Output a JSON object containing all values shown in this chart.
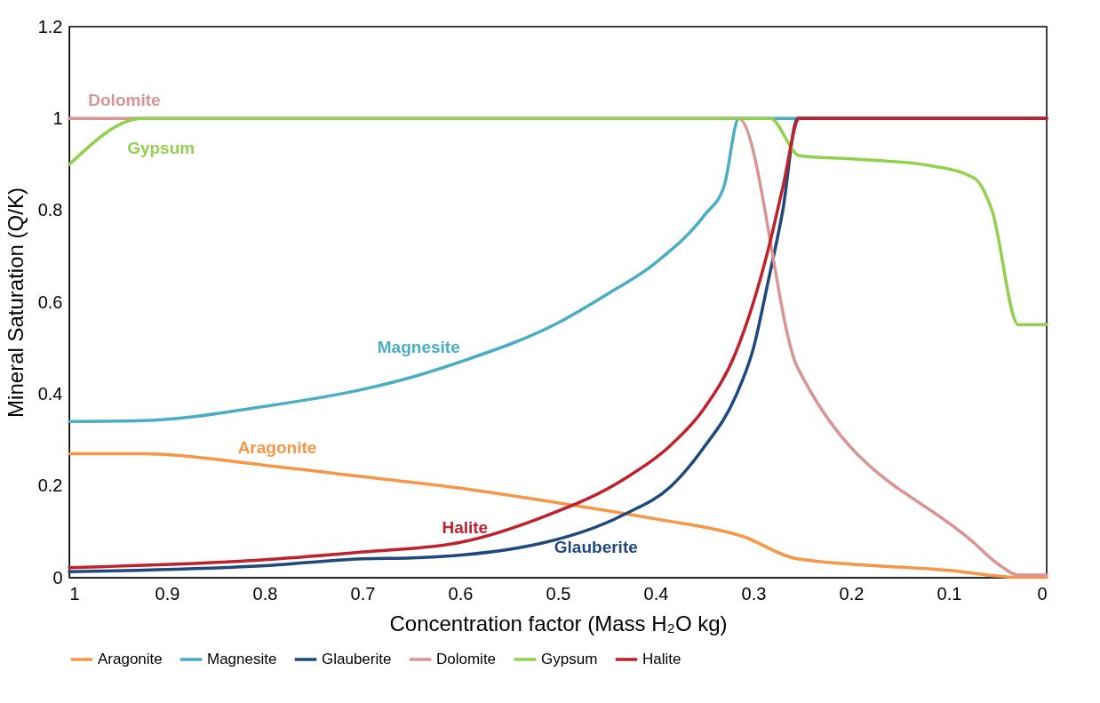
{
  "chart_data": {
    "type": "line",
    "xlabel": "Concentration factor (Mass H₂O kg)",
    "ylabel": "Mineral Saturation (Q/K)",
    "xlim": [
      1,
      0
    ],
    "xticks": [
      1,
      0.9,
      0.8,
      0.7,
      0.6,
      0.5,
      0.4,
      0.3,
      0.2,
      0.1,
      0
    ],
    "ylim": [
      0,
      1.2
    ],
    "yticks": [
      0,
      0.2,
      0.4,
      0.6,
      0.8,
      1,
      1.2
    ],
    "grid": false,
    "legend": "bottom",
    "line_style": "solid",
    "marker": "none",
    "series": [
      {
        "name": "Aragonite",
        "color": "#f79646",
        "x": [
          1,
          0.925,
          0.8,
          0.7,
          0.6,
          0.5,
          0.4,
          0.311,
          0.255,
          0.1,
          0.03,
          0
        ],
        "values": [
          0.27,
          0.27,
          0.245,
          0.22,
          0.195,
          0.163,
          0.128,
          0.09,
          0.041,
          0.016,
          0.001,
          0.001
        ]
      },
      {
        "name": "Magnesite",
        "color": "#4bacc6",
        "x": [
          1,
          0.925,
          0.8,
          0.7,
          0.649,
          0.6,
          0.5,
          0.45,
          0.4,
          0.35,
          0.33,
          0.315,
          0.26,
          0
        ],
        "values": [
          0.34,
          0.342,
          0.373,
          0.41,
          0.437,
          0.47,
          0.555,
          0.617,
          0.686,
          0.79,
          0.853,
          1,
          1,
          1
        ]
      },
      {
        "name": "Glauberite",
        "color": "#1f497d",
        "x": [
          1,
          0.8,
          0.7,
          0.649,
          0.517,
          0.433,
          0.384,
          0.351,
          0.318,
          0.3,
          0.285,
          0.27,
          0.255,
          0
        ],
        "values": [
          0.013,
          0.026,
          0.041,
          0.043,
          0.075,
          0.137,
          0.2,
          0.283,
          0.396,
          0.5,
          0.645,
          0.8,
          1,
          1
        ]
      },
      {
        "name": "Dolomite",
        "color": "#d99594",
        "x": [
          1,
          0.315,
          0.255,
          0.074,
          0.05,
          0.029,
          0
        ],
        "values": [
          1,
          1,
          0.458,
          0.075,
          0.03,
          0.006,
          0.006
        ]
      },
      {
        "name": "Gypsum",
        "color": "#92d050",
        "x": [
          1,
          0.925,
          0.283,
          0.253,
          0.2,
          0.121,
          0.074,
          0.056,
          0.029,
          0
        ],
        "values": [
          0.9,
          1,
          1,
          0.919,
          0.912,
          0.898,
          0.87,
          0.8,
          0.551,
          0.551
        ]
      },
      {
        "name": "Halite",
        "color": "#c0202c",
        "x": [
          1,
          0.8,
          0.7,
          0.6,
          0.517,
          0.433,
          0.384,
          0.351,
          0.318,
          0.3,
          0.285,
          0.27,
          0.253,
          0
        ],
        "values": [
          0.022,
          0.039,
          0.056,
          0.077,
          0.131,
          0.214,
          0.29,
          0.367,
          0.491,
          0.6,
          0.714,
          0.85,
          1,
          1
        ]
      }
    ],
    "annotations": [
      "Aragonite",
      "Magnesite",
      "Glauberite",
      "Dolomite",
      "Gypsum",
      "Halite"
    ]
  }
}
